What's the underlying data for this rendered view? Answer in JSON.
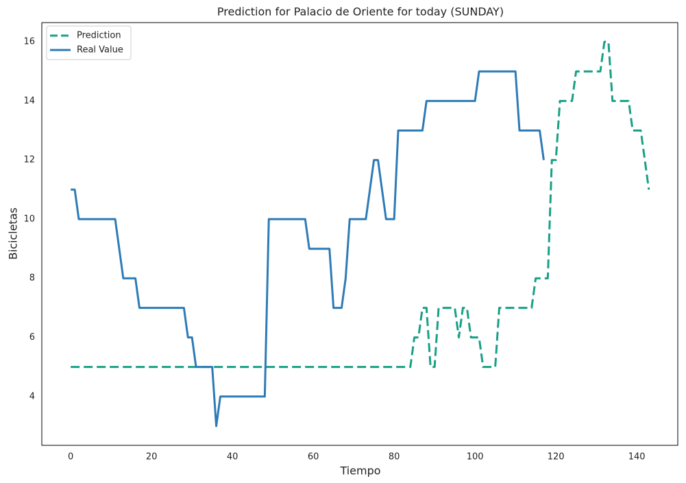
{
  "chart_data": {
    "type": "line",
    "title": "Prediction for Palacio de Oriente for today (SUNDAY)",
    "x_label": "Tiempo",
    "y_label": "Bicicletas",
    "xlim": [
      -7.15,
      150.15
    ],
    "ylim": [
      2.35,
      16.65
    ],
    "xticks": [
      0,
      20,
      40,
      60,
      80,
      100,
      120,
      140
    ],
    "yticks": [
      4,
      6,
      8,
      10,
      12,
      14,
      16
    ],
    "grid": false,
    "legend": "upper left",
    "series": [
      {
        "name": "Prediction",
        "color": "#17a086",
        "dashed": true,
        "x": [
          0,
          1,
          2,
          3,
          4,
          5,
          6,
          7,
          8,
          9,
          10,
          11,
          12,
          13,
          14,
          15,
          16,
          17,
          18,
          19,
          20,
          21,
          22,
          23,
          24,
          25,
          26,
          27,
          28,
          29,
          30,
          31,
          32,
          33,
          34,
          35,
          36,
          37,
          38,
          39,
          40,
          41,
          42,
          43,
          44,
          45,
          46,
          47,
          48,
          49,
          50,
          51,
          52,
          53,
          54,
          55,
          56,
          57,
          58,
          59,
          60,
          61,
          62,
          63,
          64,
          65,
          66,
          67,
          68,
          69,
          70,
          71,
          72,
          73,
          74,
          75,
          76,
          77,
          78,
          79,
          80,
          81,
          82,
          83,
          84,
          85,
          86,
          87,
          88,
          89,
          90,
          91,
          92,
          93,
          94,
          95,
          96,
          97,
          98,
          99,
          100,
          101,
          102,
          103,
          104,
          105,
          106,
          107,
          108,
          109,
          110,
          111,
          112,
          113,
          114,
          115,
          116,
          117,
          118,
          119,
          120,
          121,
          122,
          123,
          124,
          125,
          126,
          127,
          128,
          129,
          130,
          131,
          132,
          133,
          134,
          135,
          136,
          137,
          138,
          139,
          140,
          141,
          142,
          143
        ],
        "values": [
          5,
          5,
          5,
          5,
          5,
          5,
          5,
          5,
          5,
          5,
          5,
          5,
          5,
          5,
          5,
          5,
          5,
          5,
          5,
          5,
          5,
          5,
          5,
          5,
          5,
          5,
          5,
          5,
          5,
          5,
          5,
          5,
          5,
          5,
          5,
          5,
          5,
          5,
          5,
          5,
          5,
          5,
          5,
          5,
          5,
          5,
          5,
          5,
          5,
          5,
          5,
          5,
          5,
          5,
          5,
          5,
          5,
          5,
          5,
          5,
          5,
          5,
          5,
          5,
          5,
          5,
          5,
          5,
          5,
          5,
          5,
          5,
          5,
          5,
          5,
          5,
          5,
          5,
          5,
          5,
          5,
          5,
          5,
          5,
          5,
          6,
          6,
          7,
          7,
          5,
          5,
          7,
          7,
          7,
          7,
          7,
          6,
          7,
          7,
          6,
          6,
          6,
          5,
          5,
          5,
          5,
          7,
          7,
          7,
          7,
          7,
          7,
          7,
          7,
          7,
          8,
          8,
          8,
          8,
          12,
          12,
          14,
          14,
          14,
          14,
          15,
          15,
          15,
          15,
          15,
          15,
          15,
          16,
          16,
          14,
          14,
          14,
          14,
          14,
          13,
          13,
          13,
          12,
          11
        ]
      },
      {
        "name": "Real Value",
        "color": "#2c7bb6",
        "dashed": false,
        "x": [
          0,
          1,
          2,
          3,
          4,
          5,
          6,
          7,
          8,
          9,
          10,
          11,
          12,
          13,
          14,
          15,
          16,
          17,
          18,
          19,
          20,
          21,
          22,
          23,
          24,
          25,
          26,
          27,
          28,
          29,
          30,
          31,
          32,
          33,
          34,
          35,
          36,
          37,
          38,
          39,
          40,
          41,
          42,
          43,
          44,
          45,
          46,
          47,
          48,
          49,
          50,
          51,
          52,
          53,
          54,
          55,
          56,
          57,
          58,
          59,
          60,
          61,
          62,
          63,
          64,
          65,
          66,
          67,
          68,
          69,
          70,
          71,
          72,
          73,
          74,
          75,
          76,
          77,
          78,
          79,
          80,
          81,
          82,
          83,
          84,
          85,
          86,
          87,
          88,
          89,
          90,
          91,
          92,
          93,
          94,
          95,
          96,
          97,
          98,
          99,
          100,
          101,
          102,
          103,
          104,
          105,
          106,
          107,
          108,
          109,
          110,
          111,
          112,
          113,
          114,
          115,
          116,
          117
        ],
        "values": [
          11,
          11,
          10,
          10,
          10,
          10,
          10,
          10,
          10,
          10,
          10,
          10,
          9,
          8,
          8,
          8,
          8,
          7,
          7,
          7,
          7,
          7,
          7,
          7,
          7,
          7,
          7,
          7,
          7,
          6,
          6,
          5,
          5,
          5,
          5,
          5,
          3,
          4,
          4,
          4,
          4,
          4,
          4,
          4,
          4,
          4,
          4,
          4,
          4,
          10,
          10,
          10,
          10,
          10,
          10,
          10,
          10,
          10,
          10,
          9,
          9,
          9,
          9,
          9,
          9,
          7,
          7,
          7,
          8,
          10,
          10,
          10,
          10,
          10,
          11,
          12,
          12,
          11,
          10,
          10,
          10,
          13,
          13,
          13,
          13,
          13,
          13,
          13,
          14,
          14,
          14,
          14,
          14,
          14,
          14,
          14,
          14,
          14,
          14,
          14,
          14,
          15,
          15,
          15,
          15,
          15,
          15,
          15,
          15,
          15,
          15,
          13,
          13,
          13,
          13,
          13,
          13,
          12
        ]
      }
    ]
  }
}
